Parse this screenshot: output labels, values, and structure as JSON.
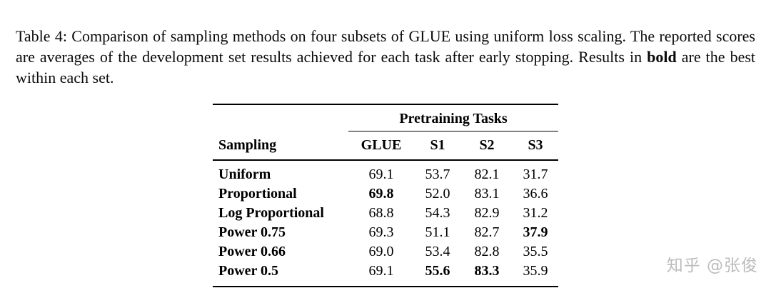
{
  "caption": {
    "part1": "Table 4: Comparison of sampling methods on four subsets of GLUE using uniform loss scaling. The reported scores are averages of the development set results achieved for each task after early stopping. Results in ",
    "bold_word": "bold",
    "part2": " are the best within each set."
  },
  "table": {
    "group_header": "Pretraining Tasks",
    "columns": [
      "Sampling",
      "GLUE",
      "S1",
      "S2",
      "S3"
    ],
    "rows": [
      {
        "label": "Uniform",
        "values": [
          "69.1",
          "53.7",
          "82.1",
          "31.7"
        ]
      },
      {
        "label": "Proportional",
        "values": [
          "69.8",
          "52.0",
          "83.1",
          "36.6"
        ]
      },
      {
        "label": "Log Proportional",
        "values": [
          "68.8",
          "54.3",
          "82.9",
          "31.2"
        ]
      },
      {
        "label": "Power 0.75",
        "values": [
          "69.3",
          "51.1",
          "82.7",
          "37.9"
        ]
      },
      {
        "label": "Power 0.66",
        "values": [
          "69.0",
          "53.4",
          "82.8",
          "35.5"
        ]
      },
      {
        "label": "Power 0.5",
        "values": [
          "69.1",
          "55.6",
          "83.3",
          "35.9"
        ]
      }
    ]
  },
  "watermark": {
    "text": "知乎 @张俊"
  }
}
